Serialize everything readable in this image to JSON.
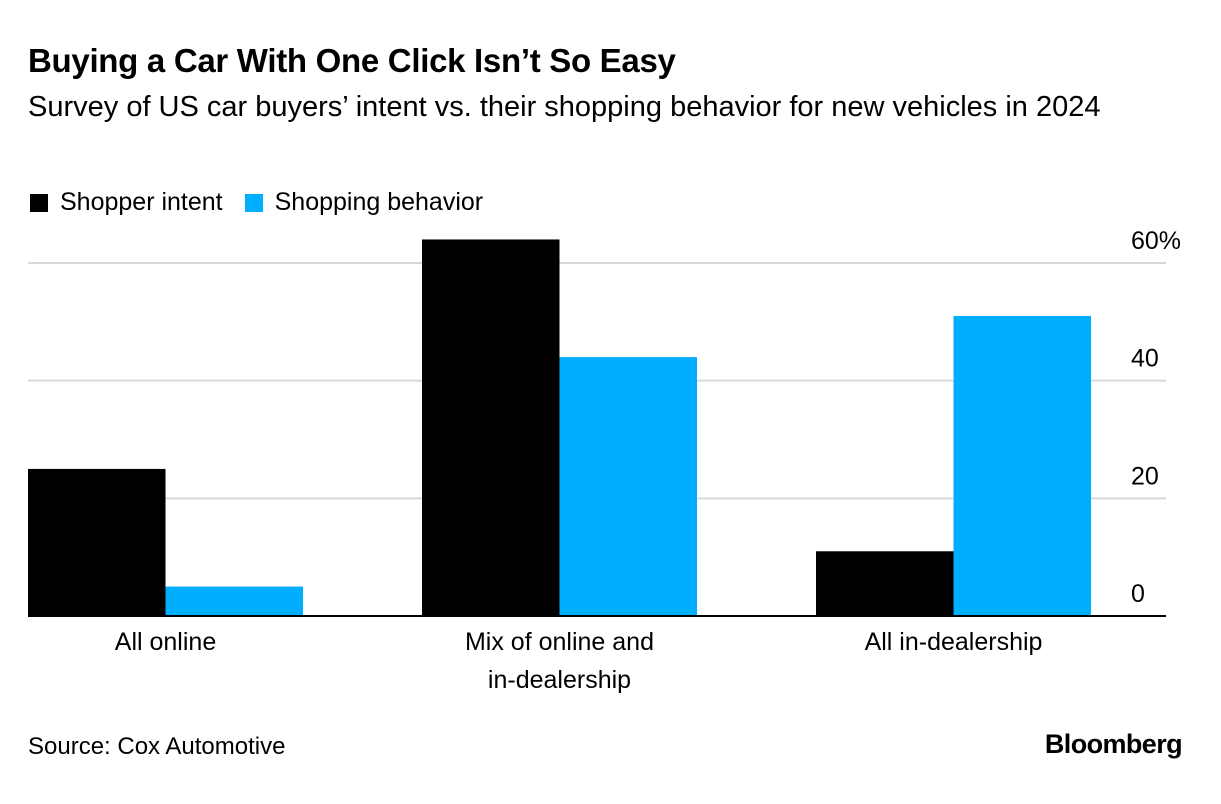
{
  "title": "Buying a Car With One Click Isn’t So Easy",
  "subtitle": "Survey of US car buyers’ intent vs. their shopping behavior for new vehicles in 2024",
  "source": "Source: Cox Automotive",
  "brand": "Bloomberg",
  "colors": {
    "intent": "#000000",
    "behavior": "#00aeff",
    "grid": "#d9d9d9",
    "axis": "#000000"
  },
  "chart_data": {
    "type": "bar",
    "title": "Buying a Car With One Click Isn’t So Easy",
    "xlabel": "",
    "ylabel": "",
    "ylim": [
      0,
      60
    ],
    "y_ticks": [
      {
        "value": 60,
        "label": "60%"
      },
      {
        "value": 40,
        "label": "40"
      },
      {
        "value": 20,
        "label": "20"
      },
      {
        "value": 0,
        "label": "0"
      }
    ],
    "grid": true,
    "legend_position": "top-left",
    "categories": [
      {
        "label": "All online",
        "lines": [
          "All online"
        ]
      },
      {
        "label": "Mix of online and in-dealership",
        "lines": [
          "Mix of online and",
          "in-dealership"
        ]
      },
      {
        "label": "All in-dealership",
        "lines": [
          "All in-dealership"
        ]
      }
    ],
    "series": [
      {
        "name": "Shopper intent",
        "color_key": "intent",
        "values": [
          25,
          64,
          11
        ]
      },
      {
        "name": "Shopping behavior",
        "color_key": "behavior",
        "values": [
          5,
          44,
          51
        ]
      }
    ]
  }
}
